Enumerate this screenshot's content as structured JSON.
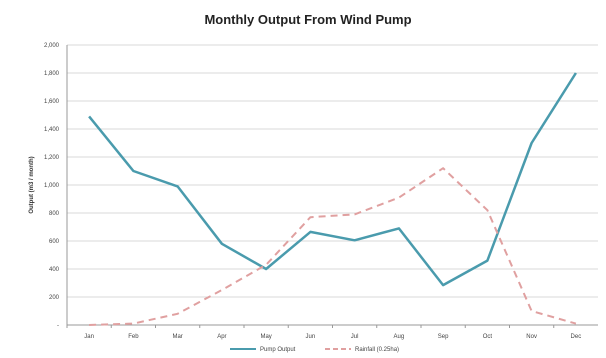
{
  "chart_data": {
    "type": "line",
    "title": "Monthly Output From Wind Pump",
    "ylabel": "Output (m3 / month)",
    "xlabel": "",
    "categories": [
      "Jan",
      "Feb",
      "Mar",
      "Apr",
      "May",
      "Jun",
      "Jul",
      "Aug",
      "Sep",
      "Oct",
      "Nov",
      "Dec"
    ],
    "ylim": [
      0,
      2000
    ],
    "yticks": [
      0,
      200,
      400,
      600,
      800,
      1000,
      1200,
      1400,
      1600,
      1800,
      2000
    ],
    "ytick_labels": [
      "-",
      "200",
      "400",
      "600",
      "800",
      "1,000",
      "1,200",
      "1,400",
      "1,600",
      "1,800",
      "2,000"
    ],
    "grid": true,
    "legend_position": "bottom",
    "series": [
      {
        "name": "Pump Output",
        "color": "#4a9bad",
        "style": "solid",
        "values": [
          1490,
          1100,
          990,
          580,
          400,
          665,
          605,
          690,
          285,
          460,
          1300,
          1800
        ]
      },
      {
        "name": "Rainfall (0.25ha)",
        "color": "#e0a0a0",
        "style": "dashed",
        "values": [
          0,
          10,
          80,
          250,
          430,
          770,
          790,
          910,
          1120,
          820,
          100,
          10
        ]
      }
    ]
  }
}
